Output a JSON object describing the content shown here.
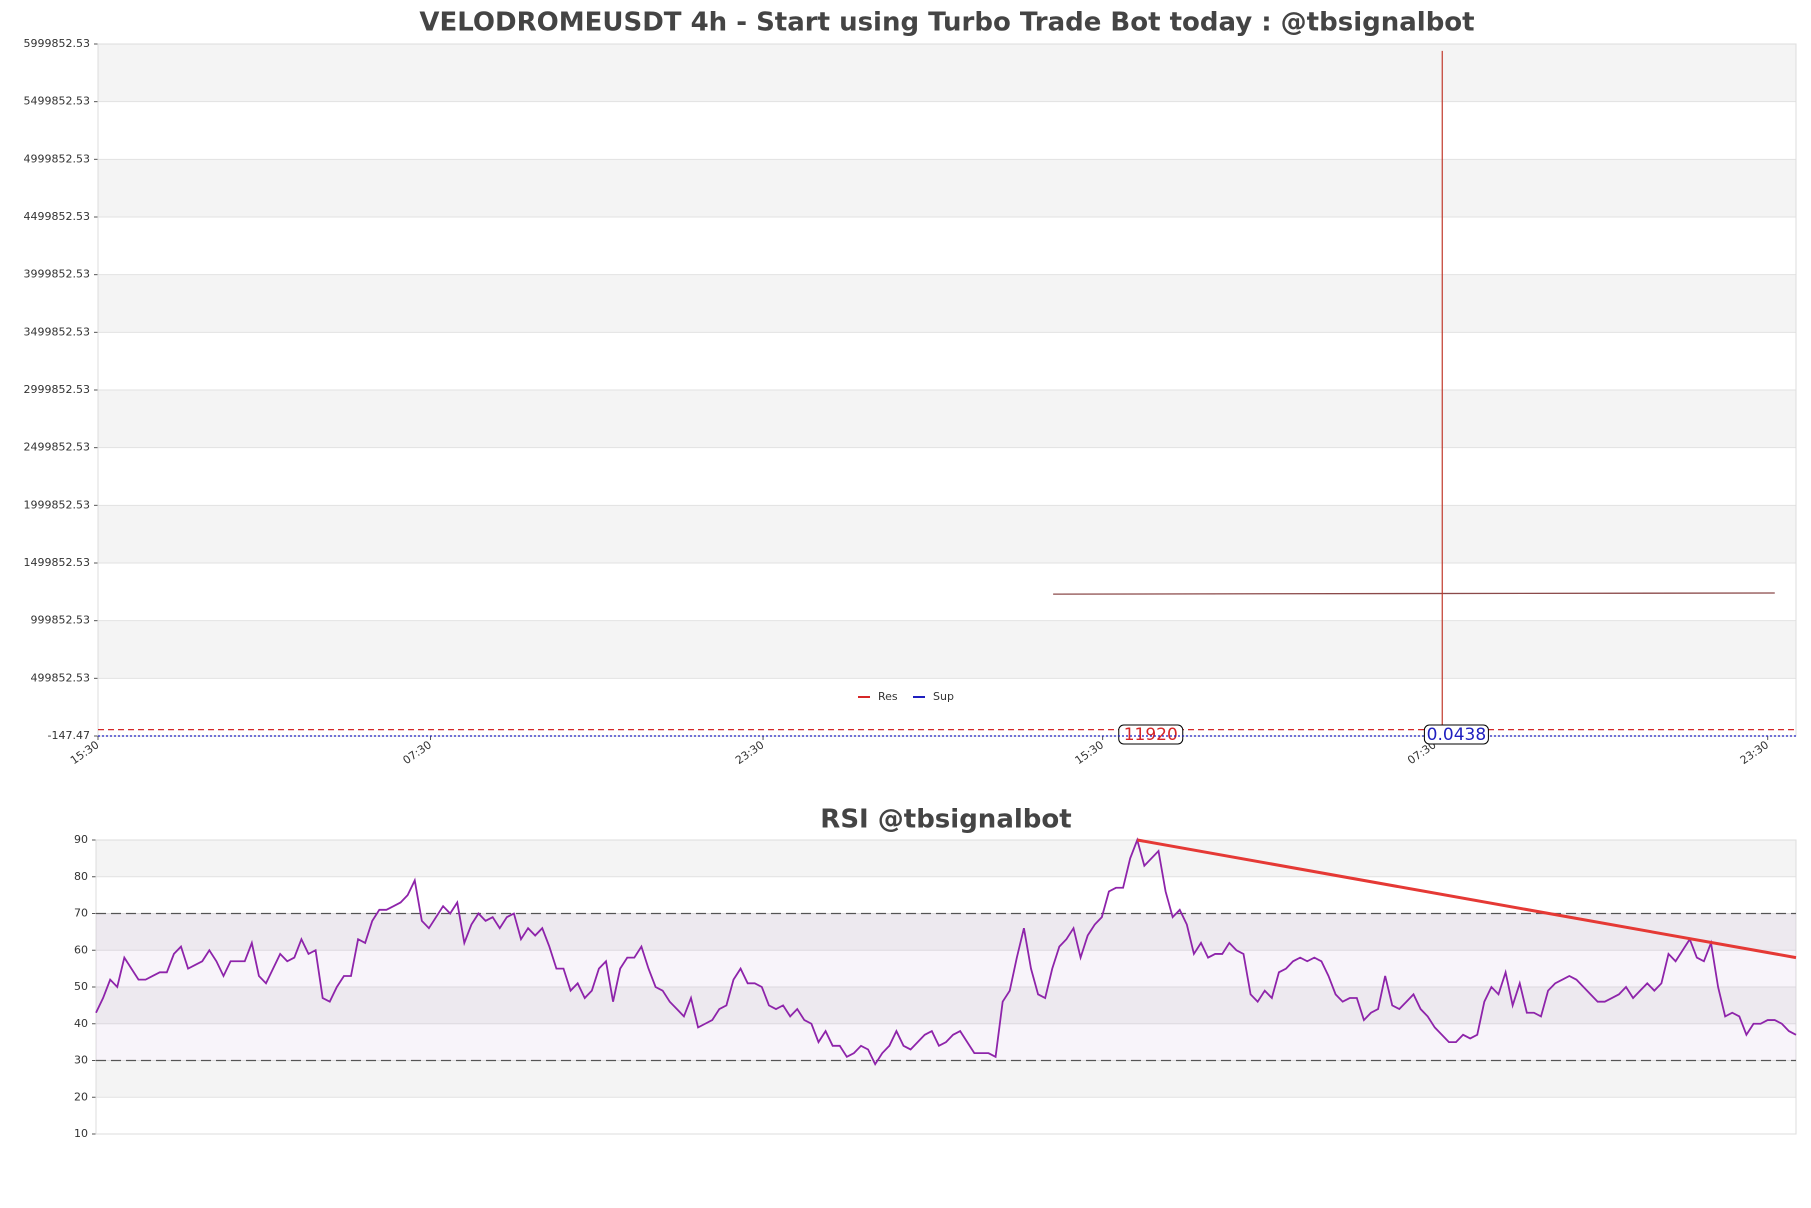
{
  "charts": [
    {
      "type": "price",
      "title": "VELODROMEUSDT 4h - Start using Turbo Trade Bot today : @tbsignalbot",
      "xlim": [
        0,
        240
      ],
      "xticks": [
        {
          "value": 0,
          "label": "15:30"
        },
        {
          "value": 47,
          "label": "07:30"
        },
        {
          "value": 94,
          "label": "23:30"
        },
        {
          "value": 142,
          "label": "15:30"
        },
        {
          "value": 189,
          "label": "07:30"
        },
        {
          "value": 236,
          "label": "23:30"
        }
      ],
      "ylim": [
        -147.47,
        5999852.53
      ],
      "yticks": [
        -147.47,
        499852.53,
        999852.53,
        1499852.53,
        1999852.53,
        2499852.53,
        2999852.53,
        3499852.53,
        3999852.53,
        4499852.53,
        4999852.53,
        5499852.53,
        5999852.53
      ],
      "spike": {
        "x": 190,
        "value": 5940000,
        "color": "#c0392b"
      },
      "level": {
        "x": [
          135,
          237
        ],
        "values": [
          1230000,
          1240000
        ],
        "color": "#8b4a4a"
      },
      "series": [
        {
          "name": "Res",
          "color": "#d62728",
          "values": [
            11920
          ]
        },
        {
          "name": "Sup",
          "color": "#1f1fbf",
          "values": [
            0.0438
          ]
        }
      ]
    },
    {
      "type": "line",
      "title": "RSI @tbsignalbot",
      "xlim": [
        0,
        240
      ],
      "ylim": [
        10,
        90
      ],
      "yticks": [
        10,
        20,
        30,
        40,
        50,
        60,
        70,
        80,
        90
      ],
      "hlines": [
        30,
        70
      ],
      "color": "#8e24aa",
      "trend": {
        "x": [
          147,
          240
        ],
        "values": [
          90,
          58
        ],
        "color": "#e53935"
      },
      "values": [
        43,
        47,
        52,
        50,
        58,
        55,
        52,
        52,
        53,
        54,
        54,
        59,
        61,
        55,
        56,
        57,
        60,
        57,
        53,
        57,
        57,
        57,
        62,
        53,
        51,
        55,
        59,
        57,
        58,
        63,
        59,
        60,
        47,
        46,
        50,
        53,
        53,
        63,
        62,
        68,
        71,
        71,
        72,
        73,
        75,
        79,
        68,
        66,
        69,
        72,
        70,
        73,
        62,
        67,
        70,
        68,
        69,
        66,
        69,
        70,
        63,
        66,
        64,
        66,
        61,
        55,
        55,
        49,
        51,
        47,
        49,
        55,
        57,
        46,
        55,
        58,
        58,
        61,
        55,
        50,
        49,
        46,
        44,
        42,
        47,
        39,
        40,
        41,
        44,
        45,
        52,
        55,
        51,
        51,
        50,
        45,
        44,
        45,
        42,
        44,
        41,
        40,
        35,
        38,
        34,
        34,
        31,
        32,
        34,
        33,
        29,
        32,
        34,
        38,
        34,
        33,
        35,
        37,
        38,
        34,
        35,
        37,
        38,
        35,
        32,
        32,
        32,
        31,
        46,
        49,
        58,
        66,
        55,
        48,
        47,
        55,
        61,
        63,
        66,
        58,
        64,
        67,
        69,
        76,
        77,
        77,
        85,
        90,
        83,
        85,
        87,
        76,
        69,
        71,
        67,
        59,
        62,
        58,
        59,
        59,
        62,
        60,
        59,
        48,
        46,
        49,
        47,
        54,
        55,
        57,
        58,
        57,
        58,
        57,
        53,
        48,
        46,
        47,
        47,
        41,
        43,
        44,
        53,
        45,
        44,
        46,
        48,
        44,
        42,
        39,
        37,
        35,
        35,
        37,
        36,
        37,
        46,
        50,
        48,
        54,
        45,
        51,
        43,
        43,
        42,
        49,
        51,
        52,
        53,
        52,
        50,
        48,
        46,
        46,
        47,
        48,
        50,
        47,
        49,
        51,
        49,
        51,
        59,
        57,
        60,
        63,
        58,
        57,
        62,
        50,
        42,
        43,
        42,
        37,
        40,
        40,
        41,
        41,
        40,
        38,
        37
      ]
    }
  ]
}
